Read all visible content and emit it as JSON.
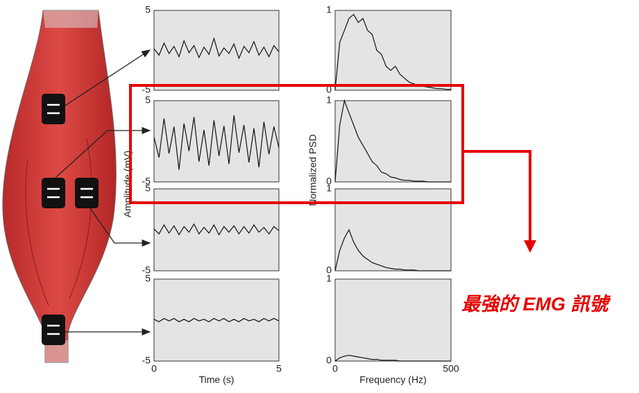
{
  "chart_data": [
    {
      "type": "line",
      "color": "#111111",
      "x": [
        0,
        0.2,
        0.4,
        0.6,
        0.8,
        1,
        1.2,
        1.4,
        1.6,
        1.8,
        2,
        2.2,
        2.4,
        2.6,
        2.8,
        3,
        3.2,
        3.4,
        3.6,
        3.8,
        4,
        4.2,
        4.4,
        4.6,
        4.8,
        5
      ],
      "values": [
        0.2,
        -0.6,
        0.9,
        -0.4,
        0.5,
        -0.8,
        1.2,
        -0.3,
        0.6,
        -0.9,
        0.4,
        -0.5,
        1.5,
        -0.7,
        0.3,
        -0.4,
        0.8,
        -1.0,
        0.5,
        -0.3,
        1.1,
        -0.6,
        0.4,
        -0.8,
        0.6,
        -0.2
      ],
      "xlim": [
        0,
        5
      ],
      "ylim": [
        -5,
        5
      ],
      "yticks": [
        -5,
        5
      ]
    },
    {
      "type": "line",
      "color": "#111111",
      "x": [
        0,
        0.2,
        0.4,
        0.6,
        0.8,
        1,
        1.2,
        1.4,
        1.6,
        1.8,
        2,
        2.2,
        2.4,
        2.6,
        2.8,
        3,
        3.2,
        3.4,
        3.6,
        3.8,
        4,
        4.2,
        4.4,
        4.6,
        4.8,
        5
      ],
      "values": [
        0.5,
        -2.0,
        2.8,
        -1.5,
        1.8,
        -3.5,
        2.2,
        -1.2,
        3.0,
        -2.5,
        1.4,
        -3.0,
        2.6,
        -1.8,
        1.9,
        -2.8,
        3.2,
        -1.4,
        2.0,
        -2.6,
        1.6,
        -3.2,
        2.4,
        -1.6,
        1.8,
        -0.8
      ],
      "xlim": [
        0,
        5
      ],
      "ylim": [
        -5,
        5
      ],
      "yticks": [
        -5,
        5
      ]
    },
    {
      "type": "line",
      "color": "#111111",
      "x": [
        0,
        0.2,
        0.4,
        0.6,
        0.8,
        1,
        1.2,
        1.4,
        1.6,
        1.8,
        2,
        2.2,
        2.4,
        2.6,
        2.8,
        3,
        3.2,
        3.4,
        3.6,
        3.8,
        4,
        4.2,
        4.4,
        4.6,
        4.8,
        5
      ],
      "values": [
        0.1,
        -0.5,
        0.6,
        -0.4,
        0.5,
        -0.6,
        0.4,
        -0.3,
        0.7,
        -0.5,
        0.3,
        -0.4,
        0.6,
        -0.6,
        0.4,
        -0.3,
        0.5,
        -0.5,
        0.4,
        -0.4,
        0.6,
        -0.3,
        0.3,
        -0.5,
        0.4,
        -0.1
      ],
      "xlim": [
        0,
        5
      ],
      "ylim": [
        -5,
        5
      ],
      "yticks": [
        -5,
        5
      ]
    },
    {
      "type": "line",
      "color": "#111111",
      "x": [
        0,
        0.2,
        0.4,
        0.6,
        0.8,
        1,
        1.2,
        1.4,
        1.6,
        1.8,
        2,
        2.2,
        2.4,
        2.6,
        2.8,
        3,
        3.2,
        3.4,
        3.6,
        3.8,
        4,
        4.2,
        4.4,
        4.6,
        4.8,
        5
      ],
      "values": [
        0.1,
        -0.2,
        0.2,
        -0.1,
        0.2,
        -0.2,
        0.1,
        -0.2,
        0.2,
        -0.1,
        0.1,
        -0.2,
        0.2,
        -0.1,
        0.2,
        -0.2,
        0.1,
        -0.2,
        0.2,
        -0.1,
        0.1,
        -0.2,
        0.2,
        -0.1,
        0.2,
        -0.1
      ],
      "xlim": [
        0,
        5
      ],
      "ylim": [
        -5,
        5
      ],
      "yticks": [
        -5,
        5
      ],
      "xticks": [
        0,
        5
      ],
      "xlabel": "Time (s)"
    },
    {
      "type": "line",
      "color": "#111111",
      "x": [
        0,
        20,
        40,
        60,
        80,
        100,
        120,
        140,
        160,
        180,
        200,
        220,
        240,
        260,
        280,
        300,
        320,
        340,
        360,
        380,
        400,
        420,
        440,
        460,
        480,
        500
      ],
      "values": [
        0,
        0.6,
        0.75,
        0.9,
        0.95,
        0.85,
        0.9,
        0.75,
        0.7,
        0.5,
        0.45,
        0.3,
        0.25,
        0.3,
        0.2,
        0.15,
        0.1,
        0.08,
        0.06,
        0.05,
        0.04,
        0.03,
        0.02,
        0.02,
        0.01,
        0.01
      ],
      "xlim": [
        0,
        500
      ],
      "ylim": [
        0,
        1
      ],
      "yticks": [
        0,
        1
      ]
    },
    {
      "type": "line",
      "color": "#111111",
      "x": [
        0,
        20,
        40,
        60,
        80,
        100,
        120,
        140,
        160,
        180,
        200,
        220,
        240,
        260,
        280,
        300,
        320,
        340,
        360,
        380,
        400,
        420,
        440,
        460,
        480,
        500
      ],
      "values": [
        0,
        0.7,
        1.0,
        0.85,
        0.7,
        0.55,
        0.45,
        0.35,
        0.25,
        0.2,
        0.12,
        0.1,
        0.06,
        0.05,
        0.03,
        0.02,
        0.02,
        0.01,
        0.01,
        0.01,
        0,
        0,
        0,
        0,
        0,
        0
      ],
      "xlim": [
        0,
        500
      ],
      "ylim": [
        0,
        1
      ],
      "yticks": [
        0,
        1
      ]
    },
    {
      "type": "line",
      "color": "#111111",
      "x": [
        0,
        20,
        40,
        60,
        80,
        100,
        120,
        140,
        160,
        180,
        200,
        220,
        240,
        260,
        280,
        300,
        320,
        340,
        360,
        380,
        400,
        420,
        440,
        460,
        480,
        500
      ],
      "values": [
        0,
        0.25,
        0.4,
        0.5,
        0.35,
        0.25,
        0.18,
        0.14,
        0.1,
        0.08,
        0.06,
        0.04,
        0.03,
        0.02,
        0.02,
        0.01,
        0.01,
        0.01,
        0,
        0,
        0,
        0,
        0,
        0,
        0,
        0
      ],
      "xlim": [
        0,
        500
      ],
      "ylim": [
        0,
        1
      ],
      "yticks": [
        0,
        1
      ]
    },
    {
      "type": "line",
      "color": "#111111",
      "x": [
        0,
        20,
        40,
        60,
        80,
        100,
        120,
        140,
        160,
        180,
        200,
        220,
        240,
        260,
        280,
        300,
        320,
        340,
        360,
        380,
        400,
        420,
        440,
        460,
        480,
        500
      ],
      "values": [
        0,
        0.04,
        0.06,
        0.07,
        0.06,
        0.05,
        0.04,
        0.03,
        0.02,
        0.02,
        0.01,
        0.01,
        0.01,
        0.01,
        0,
        0,
        0,
        0,
        0,
        0,
        0,
        0,
        0,
        0,
        0,
        0
      ],
      "xlim": [
        0,
        500
      ],
      "ylim": [
        0,
        1
      ],
      "yticks": [
        0,
        1
      ],
      "xticks": [
        0,
        500
      ],
      "xlabel": "Frequency (Hz)"
    }
  ],
  "labels": {
    "amplitude_axis": "Amplitude (mV)",
    "psd_axis": "Normalized PSD"
  },
  "annotation": "最強的 EMG 訊號"
}
